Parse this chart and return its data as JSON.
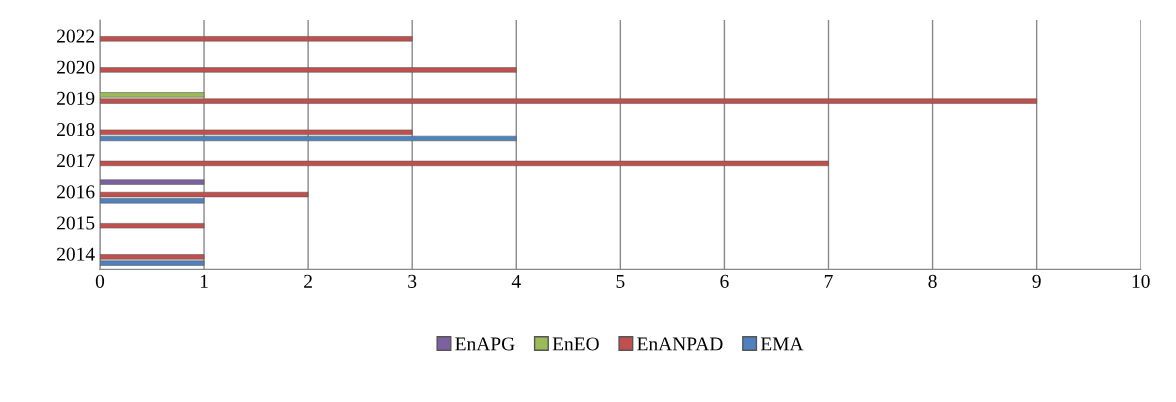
{
  "chart_data": {
    "type": "bar",
    "orientation": "horizontal",
    "categories": [
      "2022",
      "2020",
      "2019",
      "2018",
      "2017",
      "2016",
      "2015",
      "2014"
    ],
    "series": [
      {
        "name": "EnAPG",
        "color": "#7d60a0",
        "values": [
          null,
          null,
          null,
          null,
          null,
          1,
          null,
          null
        ]
      },
      {
        "name": "EnEO",
        "color": "#9bbb59",
        "values": [
          null,
          null,
          1,
          null,
          null,
          null,
          null,
          null
        ]
      },
      {
        "name": "EnANPAD",
        "color": "#c0504d",
        "values": [
          3,
          4,
          9,
          3,
          7,
          2,
          1,
          1
        ]
      },
      {
        "name": "EMA",
        "color": "#4f81bd",
        "values": [
          null,
          null,
          null,
          4,
          null,
          1,
          null,
          1
        ]
      }
    ],
    "xlim": [
      0,
      10
    ],
    "xticks": [
      0,
      1,
      2,
      3,
      4,
      5,
      6,
      7,
      8,
      9,
      10
    ],
    "grid": "x",
    "legend": "bottom"
  }
}
